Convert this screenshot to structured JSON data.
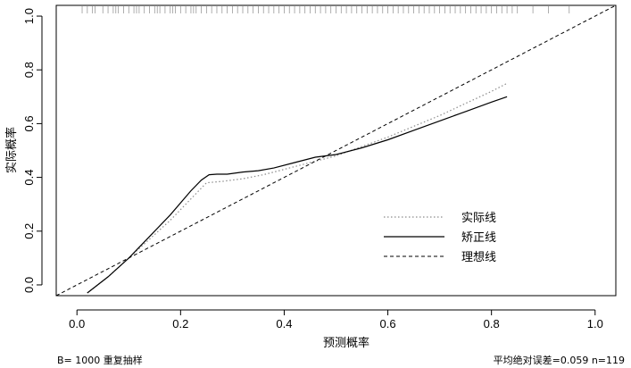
{
  "chart_data": {
    "type": "line",
    "xlabel": "预测概率",
    "ylabel": "实际概率",
    "xlim": [
      -0.04,
      1.04
    ],
    "ylim": [
      -0.04,
      1.04
    ],
    "x_ticks": [
      "0.0",
      "0.2",
      "0.4",
      "0.6",
      "0.8",
      "1.0"
    ],
    "y_ticks": [
      "0.0",
      "0.2",
      "0.4",
      "0.6",
      "0.8",
      "1.0"
    ],
    "grid": false,
    "legend_position": "bottom-right",
    "series": [
      {
        "name": "实际线",
        "style": "dotted",
        "color": "#8c8c8c",
        "x": [
          0.02,
          0.06,
          0.1,
          0.14,
          0.18,
          0.22,
          0.25,
          0.28,
          0.32,
          0.36,
          0.4,
          0.45,
          0.5,
          0.55,
          0.6,
          0.65,
          0.7,
          0.75,
          0.8,
          0.83
        ],
        "y": [
          -0.03,
          0.03,
          0.1,
          0.17,
          0.24,
          0.32,
          0.38,
          0.385,
          0.395,
          0.41,
          0.43,
          0.455,
          0.48,
          0.515,
          0.55,
          0.59,
          0.63,
          0.675,
          0.72,
          0.75
        ]
      },
      {
        "name": "矫正线",
        "style": "solid",
        "color": "#000000",
        "x": [
          0.02,
          0.06,
          0.1,
          0.14,
          0.18,
          0.22,
          0.24,
          0.255,
          0.27,
          0.29,
          0.32,
          0.35,
          0.38,
          0.42,
          0.46,
          0.5,
          0.55,
          0.6,
          0.65,
          0.7,
          0.75,
          0.8,
          0.83
        ],
        "y": [
          -0.03,
          0.03,
          0.1,
          0.18,
          0.26,
          0.35,
          0.39,
          0.41,
          0.412,
          0.412,
          0.42,
          0.425,
          0.435,
          0.455,
          0.475,
          0.485,
          0.51,
          0.54,
          0.575,
          0.61,
          0.645,
          0.68,
          0.7
        ]
      },
      {
        "name": "理想线",
        "style": "dashed",
        "color": "#000000",
        "x": [
          -0.04,
          1.04
        ],
        "y": [
          -0.04,
          1.04
        ]
      }
    ],
    "rug": [
      0.01,
      0.02,
      0.03,
      0.035,
      0.05,
      0.06,
      0.07,
      0.075,
      0.08,
      0.09,
      0.1,
      0.11,
      0.115,
      0.12,
      0.13,
      0.14,
      0.15,
      0.155,
      0.16,
      0.17,
      0.18,
      0.185,
      0.19,
      0.2,
      0.21,
      0.22,
      0.225,
      0.23,
      0.24,
      0.25,
      0.26,
      0.27,
      0.28,
      0.29,
      0.3,
      0.31,
      0.32,
      0.33,
      0.34,
      0.35,
      0.36,
      0.37,
      0.38,
      0.39,
      0.4,
      0.41,
      0.42,
      0.43,
      0.44,
      0.45,
      0.46,
      0.47,
      0.48,
      0.49,
      0.5,
      0.51,
      0.52,
      0.53,
      0.54,
      0.55,
      0.56,
      0.57,
      0.58,
      0.59,
      0.6,
      0.61,
      0.62,
      0.63,
      0.64,
      0.65,
      0.66,
      0.67,
      0.68,
      0.69,
      0.7,
      0.71,
      0.72,
      0.73,
      0.74,
      0.75,
      0.76,
      0.77,
      0.78,
      0.79,
      0.8,
      0.81,
      0.82,
      0.83,
      0.84,
      0.85,
      0.88,
      0.91,
      0.95
    ],
    "footer_left": "B= 1000 重复抽样",
    "footer_right": "平均绝对误差=0.059 n=119"
  }
}
